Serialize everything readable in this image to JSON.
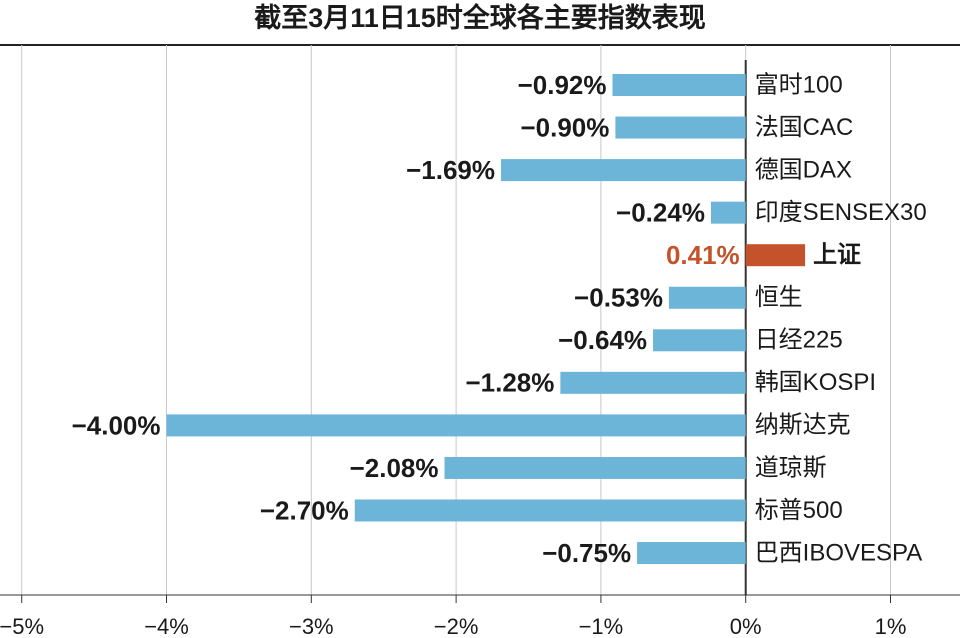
{
  "chart_data": {
    "type": "bar",
    "orientation": "horizontal",
    "title": "截至3月11日15时全球各主要指数表现",
    "categories": [
      "富时100",
      "法国CAC",
      "德国DAX",
      "印度SENSEX30",
      "上证",
      "恒生",
      "日经225",
      "韩国KOSPI",
      "纳斯达克",
      "道琼斯",
      "标普500",
      "巴西IBOVESPA"
    ],
    "values": [
      -0.92,
      -0.9,
      -1.69,
      -0.24,
      0.41,
      -0.53,
      -0.64,
      -1.28,
      -4.0,
      -2.08,
      -2.7,
      -0.75
    ],
    "value_labels": [
      "−0.92%",
      "−0.90%",
      "−1.69%",
      "−0.24%",
      "0.41%",
      "−0.53%",
      "−0.64%",
      "−1.28%",
      "−4.00%",
      "−2.08%",
      "−2.70%",
      "−0.75%"
    ],
    "color": "#6cb5d9",
    "colors": [
      "#6cb5d9",
      "#6cb5d9",
      "#6cb5d9",
      "#6cb5d9",
      "#c4532b",
      "#6cb5d9",
      "#6cb5d9",
      "#6cb5d9",
      "#6cb5d9",
      "#6cb5d9",
      "#6cb5d9",
      "#6cb5d9"
    ],
    "xlim": [
      -5.15,
      1.48
    ],
    "xticks": [
      {
        "value": -5,
        "label": "−5%"
      },
      {
        "value": -4,
        "label": "−4%"
      },
      {
        "value": -3,
        "label": "−3%"
      },
      {
        "value": -2,
        "label": "−2%"
      },
      {
        "value": -1,
        "label": "−1%"
      },
      {
        "value": 0,
        "label": "0%"
      },
      {
        "value": 1,
        "label": "1%"
      }
    ],
    "grid": true
  }
}
